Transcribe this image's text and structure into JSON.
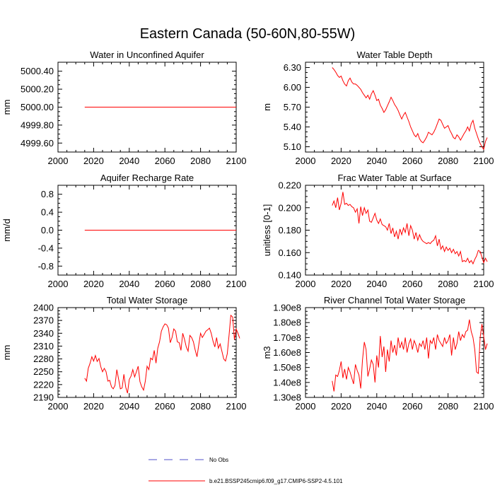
{
  "title": "Eastern Canada (50-60N,80-55W)",
  "colors": {
    "series": "#ff0000",
    "obs": "#5050c8",
    "axis": "#000000"
  },
  "legend": {
    "obs_label": "No Obs",
    "model_label": "b.e21.BSSP245cmip6.f09_g17.CMIP6-SSP2-4.5.101"
  },
  "chart_data": [
    {
      "id": "water-unconfined-aquifer",
      "type": "line",
      "title": "Water in Unconfined Aquifer",
      "xlabel": "",
      "ylabel": "mm",
      "xlim": [
        2000,
        2100
      ],
      "ylim": [
        4999.5,
        5000.5
      ],
      "xticks": [
        2000,
        2020,
        2040,
        2060,
        2080,
        2100
      ],
      "yticks": [
        4999.6,
        4999.8,
        5000.0,
        5000.2,
        5000.4
      ],
      "ytick_labels": [
        "4999.60",
        "4999.80",
        "5000.00",
        "5000.20",
        "5000.40"
      ],
      "x": [
        2015,
        2100
      ],
      "y": [
        5000.0,
        5000.0
      ]
    },
    {
      "id": "water-table-depth",
      "type": "line",
      "title": "Water Table Depth",
      "xlabel": "",
      "ylabel": "m",
      "xlim": [
        2000,
        2100
      ],
      "ylim": [
        5.02,
        6.38
      ],
      "xticks": [
        2000,
        2020,
        2040,
        2060,
        2080,
        2100
      ],
      "yticks": [
        5.1,
        5.4,
        5.7,
        6.0,
        6.3
      ],
      "ytick_labels": [
        "5.10",
        "5.40",
        "5.70",
        "6.00",
        "6.30"
      ],
      "x_start": 2015,
      "y": [
        6.3,
        6.27,
        6.23,
        6.18,
        6.15,
        6.17,
        6.1,
        6.05,
        6.02,
        6.1,
        6.14,
        6.08,
        6.05,
        6.05,
        6.03,
        6.0,
        5.97,
        5.92,
        5.88,
        5.84,
        5.88,
        5.82,
        5.9,
        5.95,
        5.88,
        5.8,
        5.82,
        5.73,
        5.68,
        5.62,
        5.66,
        5.72,
        5.78,
        5.85,
        5.8,
        5.74,
        5.7,
        5.65,
        5.58,
        5.52,
        5.58,
        5.62,
        5.55,
        5.48,
        5.4,
        5.34,
        5.28,
        5.25,
        5.3,
        5.22,
        5.18,
        5.16,
        5.2,
        5.25,
        5.32,
        5.3,
        5.28,
        5.32,
        5.38,
        5.45,
        5.52,
        5.5,
        5.44,
        5.38,
        5.4,
        5.42,
        5.35,
        5.3,
        5.24,
        5.22,
        5.28,
        5.25,
        5.2,
        5.25,
        5.3,
        5.34,
        5.4,
        5.34,
        5.45,
        5.5,
        5.38,
        5.3,
        5.22,
        5.15,
        5.1,
        5.06,
        5.18,
        5.24
      ]
    },
    {
      "id": "aquifer-recharge-rate",
      "type": "line",
      "title": "Aquifer Recharge Rate",
      "xlabel": "",
      "ylabel": "mm/d",
      "xlim": [
        2000,
        2100
      ],
      "ylim": [
        -1.0,
        1.0
      ],
      "xticks": [
        2000,
        2020,
        2040,
        2060,
        2080,
        2100
      ],
      "yticks": [
        -0.8,
        -0.4,
        0.0,
        0.4,
        0.8
      ],
      "ytick_labels": [
        "-0.8",
        "-0.4",
        "0.0",
        "0.4",
        "0.8"
      ],
      "x": [
        2015,
        2100
      ],
      "y": [
        0.0,
        0.0
      ]
    },
    {
      "id": "frac-water-table-surface",
      "type": "line",
      "title": "Frac Water Table at Surface",
      "xlabel": "",
      "ylabel": "unitless [0-1]",
      "xlim": [
        2000,
        2100
      ],
      "ylim": [
        0.14,
        0.22
      ],
      "xticks": [
        2000,
        2020,
        2040,
        2060,
        2080,
        2100
      ],
      "yticks": [
        0.14,
        0.16,
        0.18,
        0.2,
        0.22
      ],
      "ytick_labels": [
        "0.140",
        "0.160",
        "0.180",
        "0.200",
        "0.220"
      ],
      "x_start": 2015,
      "y": [
        0.202,
        0.206,
        0.2,
        0.209,
        0.198,
        0.204,
        0.214,
        0.203,
        0.204,
        0.202,
        0.203,
        0.201,
        0.2,
        0.196,
        0.199,
        0.186,
        0.201,
        0.193,
        0.2,
        0.195,
        0.198,
        0.188,
        0.187,
        0.191,
        0.195,
        0.189,
        0.186,
        0.19,
        0.185,
        0.184,
        0.183,
        0.18,
        0.186,
        0.177,
        0.182,
        0.174,
        0.179,
        0.172,
        0.181,
        0.176,
        0.182,
        0.178,
        0.186,
        0.175,
        0.184,
        0.18,
        0.172,
        0.178,
        0.171,
        0.176,
        0.172,
        0.17,
        0.169,
        0.168,
        0.169,
        0.168,
        0.17,
        0.171,
        0.175,
        0.166,
        0.172,
        0.163,
        0.166,
        0.161,
        0.165,
        0.162,
        0.164,
        0.16,
        0.163,
        0.159,
        0.161,
        0.157,
        0.161,
        0.152,
        0.153,
        0.152,
        0.155,
        0.151,
        0.153,
        0.15,
        0.154,
        0.157,
        0.162,
        0.161,
        0.156,
        0.151,
        0.155,
        0.152
      ]
    },
    {
      "id": "total-water-storage",
      "type": "line",
      "title": "Total Water Storage",
      "xlabel": "",
      "ylabel": "mm",
      "xlim": [
        2000,
        2100
      ],
      "ylim": [
        2190,
        2400
      ],
      "xticks": [
        2000,
        2020,
        2040,
        2060,
        2080,
        2100
      ],
      "yticks": [
        2190,
        2220,
        2250,
        2280,
        2310,
        2340,
        2370,
        2400
      ],
      "ytick_labels": [
        "2190",
        "2220",
        "2250",
        "2280",
        "2310",
        "2340",
        "2370",
        "2400"
      ],
      "x_start": 2015,
      "y": [
        2235,
        2228,
        2258,
        2270,
        2285,
        2275,
        2288,
        2274,
        2281,
        2262,
        2250,
        2258,
        2250,
        2228,
        2230,
        2215,
        2210,
        2218,
        2255,
        2233,
        2210,
        2212,
        2244,
        2214,
        2200,
        2232,
        2240,
        2255,
        2238,
        2250,
        2263,
        2227,
        2215,
        2207,
        2228,
        2263,
        2255,
        2282,
        2278,
        2300,
        2270,
        2305,
        2320,
        2345,
        2355,
        2362,
        2360,
        2352,
        2318,
        2330,
        2350,
        2345,
        2320,
        2318,
        2300,
        2340,
        2326,
        2308,
        2298,
        2335,
        2330,
        2320,
        2301,
        2285,
        2313,
        2340,
        2330,
        2337,
        2345,
        2348,
        2352,
        2340,
        2322,
        2308,
        2330,
        2305,
        2315,
        2298,
        2280,
        2275,
        2292,
        2335,
        2382,
        2378,
        2325,
        2350,
        2340,
        2328
      ]
    },
    {
      "id": "river-channel-storage",
      "type": "line",
      "title": "River Channel Total Water Storage",
      "xlabel": "",
      "ylabel": "m3",
      "xlim": [
        2000,
        2100
      ],
      "ylim": [
        130000000.0,
        190000000.0
      ],
      "xticks": [
        2000,
        2020,
        2040,
        2060,
        2080,
        2100
      ],
      "yticks": [
        130000000.0,
        140000000.0,
        150000000.0,
        160000000.0,
        170000000.0,
        180000000.0,
        190000000.0
      ],
      "ytick_labels": [
        "1.30e8",
        "1.40e8",
        "1.50e8",
        "1.60e8",
        "1.70e8",
        "1.80e8",
        "1.90e8"
      ],
      "x_start": 2015,
      "y": [
        141000000.0,
        134000000.0,
        145000000.0,
        144000000.0,
        148000000.0,
        154000000.0,
        143000000.0,
        149000000.0,
        142000000.0,
        150000000.0,
        147000000.0,
        143000000.0,
        139000000.0,
        152000000.0,
        148000000.0,
        145000000.0,
        136000000.0,
        155000000.0,
        167000000.0,
        162000000.0,
        144000000.0,
        149000000.0,
        155000000.0,
        152000000.0,
        140000000.0,
        158000000.0,
        150000000.0,
        171000000.0,
        157000000.0,
        164000000.0,
        147000000.0,
        162000000.0,
        154000000.0,
        168000000.0,
        160000000.0,
        165000000.0,
        158000000.0,
        170000000.0,
        163000000.0,
        167000000.0,
        162000000.0,
        170000000.0,
        160000000.0,
        166000000.0,
        169000000.0,
        162000000.0,
        168000000.0,
        165000000.0,
        160000000.0,
        166000000.0,
        164000000.0,
        168000000.0,
        162000000.0,
        170000000.0,
        156000000.0,
        168000000.0,
        166000000.0,
        170000000.0,
        162000000.0,
        172000000.0,
        168000000.0,
        166000000.0,
        164000000.0,
        170000000.0,
        166000000.0,
        168000000.0,
        172000000.0,
        158000000.0,
        170000000.0,
        162000000.0,
        166000000.0,
        174000000.0,
        168000000.0,
        172000000.0,
        170000000.0,
        174000000.0,
        175000000.0,
        182000000.0,
        174000000.0,
        170000000.0,
        162000000.0,
        147000000.0,
        146000000.0,
        170000000.0,
        179000000.0,
        171000000.0,
        162000000.0,
        166000000.0
      ]
    }
  ]
}
